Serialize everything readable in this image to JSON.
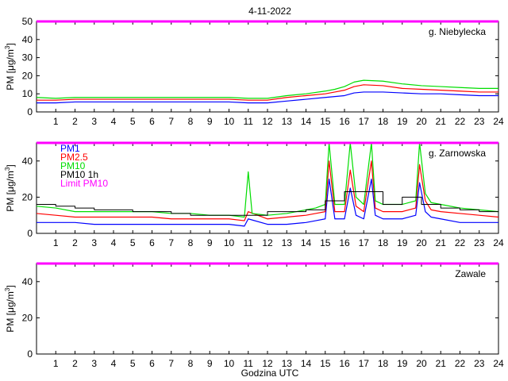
{
  "figure": {
    "title": "4-11-2022",
    "xlabel": "Godzina UTC"
  },
  "chart_data": [
    {
      "type": "line",
      "station": "g. Niebylecka",
      "ylabel_main": "PM [",
      "ylabel_unit": "μg/m",
      "ylabel_sup": "3",
      "ylabel_close": "]",
      "xlim": [
        0,
        24
      ],
      "ylim": [
        0,
        50
      ],
      "xticks": [
        1,
        2,
        3,
        4,
        5,
        6,
        7,
        8,
        9,
        10,
        11,
        12,
        13,
        14,
        15,
        16,
        17,
        18,
        19,
        20,
        21,
        22,
        23,
        24
      ],
      "yticks": [
        0,
        10,
        20,
        30,
        40,
        50
      ],
      "limit": 50,
      "series": [
        {
          "name": "PM1",
          "color": "#0000ff",
          "x": [
            0,
            1,
            2,
            3,
            4,
            5,
            6,
            7,
            8,
            9,
            10,
            11,
            12,
            13,
            14,
            15,
            15.5,
            16,
            16.5,
            17,
            18,
            19,
            20,
            21,
            22,
            23,
            24
          ],
          "y": [
            5,
            5,
            5.5,
            5.5,
            5.5,
            5.5,
            5.5,
            5.5,
            5.5,
            5.5,
            5.5,
            5,
            5,
            6,
            7,
            8,
            8.5,
            9,
            10.5,
            11,
            11,
            10.5,
            10,
            10,
            9.5,
            9,
            9
          ]
        },
        {
          "name": "PM2.5",
          "color": "#ff0000",
          "x": [
            0,
            1,
            2,
            3,
            4,
            5,
            6,
            7,
            8,
            9,
            10,
            11,
            12,
            13,
            14,
            15,
            15.5,
            16,
            16.5,
            17,
            18,
            19,
            20,
            21,
            22,
            23,
            24
          ],
          "y": [
            6.5,
            6.5,
            7,
            7,
            7,
            7,
            7,
            7,
            7,
            7,
            7,
            6.5,
            6.5,
            8,
            9,
            10,
            11,
            12,
            14,
            15,
            14.5,
            13,
            12.5,
            12,
            11.5,
            11,
            11
          ]
        },
        {
          "name": "PM10",
          "color": "#00dd00",
          "x": [
            0,
            1,
            2,
            3,
            4,
            5,
            6,
            7,
            8,
            9,
            10,
            11,
            12,
            13,
            14,
            15,
            15.5,
            16,
            16.5,
            17,
            18,
            19,
            20,
            21,
            22,
            23,
            24
          ],
          "y": [
            8,
            7.5,
            8,
            8,
            8,
            8,
            8,
            8,
            8,
            8,
            8,
            7.5,
            7.5,
            9,
            10,
            11.5,
            12.5,
            14,
            16.5,
            17.5,
            17,
            15.5,
            14.5,
            14,
            13.5,
            13,
            13
          ]
        }
      ]
    },
    {
      "type": "line",
      "station": "g. Zarnowska",
      "ylabel_main": "PM [",
      "ylabel_unit": "μg/m",
      "ylabel_sup": "3",
      "ylabel_close": "]",
      "xlim": [
        0,
        24
      ],
      "ylim": [
        0,
        50
      ],
      "xticks": [
        1,
        2,
        3,
        4,
        5,
        6,
        7,
        8,
        9,
        10,
        11,
        12,
        13,
        14,
        15,
        16,
        17,
        18,
        19,
        20,
        21,
        22,
        23,
        24
      ],
      "yticks": [
        0,
        20,
        40
      ],
      "limit": 50,
      "legend": [
        "PM1",
        "PM2.5",
        "PM10",
        "PM10 1h",
        "Limit PM10"
      ],
      "legend_position": "top-left",
      "series": [
        {
          "name": "PM1",
          "color": "#0000ff",
          "x": [
            0,
            1,
            2,
            3,
            4,
            5,
            6,
            7,
            8,
            9,
            10,
            10.8,
            11,
            12,
            13,
            14,
            14.5,
            15,
            15.2,
            15.5,
            16,
            16.3,
            16.6,
            17,
            17.4,
            17.6,
            18,
            19,
            19.7,
            19.9,
            20.2,
            20.5,
            21,
            22,
            23,
            24
          ],
          "y": [
            6,
            6,
            6,
            5,
            5,
            5,
            5,
            5,
            5,
            5,
            5,
            4,
            8,
            5,
            5,
            6,
            7,
            8,
            30,
            8,
            8,
            25,
            10,
            8,
            30,
            10,
            8,
            8,
            10,
            28,
            12,
            9,
            8,
            6,
            6,
            6
          ]
        },
        {
          "name": "PM2.5",
          "color": "#ff0000",
          "x": [
            0,
            1,
            2,
            3,
            4,
            5,
            6,
            7,
            8,
            9,
            10,
            10.8,
            11,
            12,
            13,
            14,
            14.5,
            15,
            15.2,
            15.5,
            16,
            16.3,
            16.6,
            17,
            17.4,
            17.6,
            18,
            19,
            19.7,
            19.9,
            20.2,
            20.5,
            21,
            22,
            23,
            24
          ],
          "y": [
            11,
            10,
            9,
            9,
            9,
            9,
            9,
            8,
            8,
            8,
            8,
            7,
            12,
            8,
            9,
            10,
            11,
            12,
            40,
            12,
            12,
            35,
            15,
            12,
            40,
            14,
            12,
            12,
            14,
            38,
            18,
            13,
            12,
            11,
            10,
            9
          ]
        },
        {
          "name": "PM10",
          "color": "#00dd00",
          "x": [
            0,
            1,
            2,
            3,
            4,
            5,
            6,
            7,
            8,
            9,
            10,
            10.8,
            11,
            11.2,
            12,
            13,
            14,
            14.5,
            15,
            15.2,
            15.5,
            16,
            16.3,
            16.6,
            17,
            17.4,
            17.6,
            18,
            19,
            19.7,
            19.9,
            20.2,
            20.5,
            21,
            22,
            23,
            24
          ],
          "y": [
            15,
            14,
            12,
            12,
            12,
            12,
            12,
            11,
            11,
            10,
            10,
            9,
            34,
            11,
            10,
            11,
            13,
            14,
            16,
            50,
            16,
            16,
            50,
            20,
            16,
            50,
            18,
            16,
            16,
            18,
            50,
            22,
            17,
            16,
            14,
            13,
            12
          ]
        },
        {
          "name": "PM10 1h",
          "color": "#000000",
          "step": true,
          "x": [
            0,
            1,
            2,
            3,
            4,
            5,
            6,
            7,
            8,
            9,
            10,
            11,
            12,
            13,
            14,
            15,
            16,
            17,
            18,
            19,
            20,
            21,
            22,
            23,
            24
          ],
          "y": [
            16,
            15,
            14,
            13,
            13,
            12,
            12,
            11,
            10,
            10,
            10,
            10,
            12,
            12,
            13,
            18,
            23,
            23,
            16,
            20,
            16,
            14,
            13,
            12,
            12
          ]
        }
      ]
    },
    {
      "type": "line",
      "station": "Zawale",
      "ylabel_main": "PM [",
      "ylabel_unit": "μg/m",
      "ylabel_sup": "3",
      "ylabel_close": "]",
      "xlim": [
        0,
        24
      ],
      "ylim": [
        0,
        50
      ],
      "xticks": [
        1,
        2,
        3,
        4,
        5,
        6,
        7,
        8,
        9,
        10,
        11,
        12,
        13,
        14,
        15,
        16,
        17,
        18,
        19,
        20,
        21,
        22,
        23,
        24
      ],
      "yticks": [
        0,
        20,
        40
      ],
      "limit": 50,
      "series": []
    }
  ]
}
